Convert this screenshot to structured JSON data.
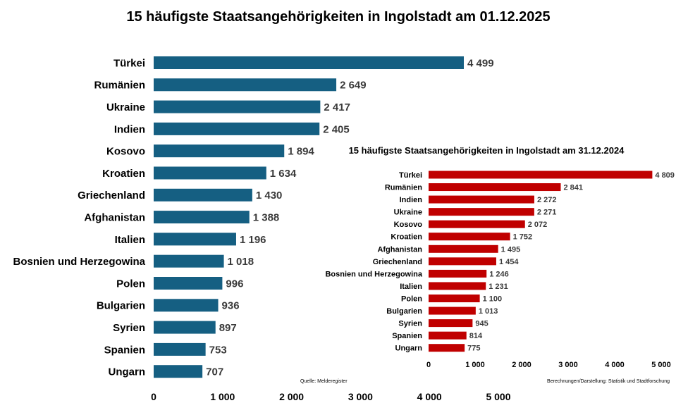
{
  "chart_data": [
    {
      "type": "bar",
      "orientation": "horizontal",
      "title": "15 häufigste Staatsangehörigkeiten in Ingolstadt am 01.12.2025",
      "categories": [
        "Türkei",
        "Rumänien",
        "Ukraine",
        "Indien",
        "Kosovo",
        "Kroatien",
        "Griechenland",
        "Afghanistan",
        "Italien",
        "Bosnien und Herzegowina",
        "Polen",
        "Bulgarien",
        "Syrien",
        "Spanien",
        "Ungarn"
      ],
      "values": [
        4499,
        2649,
        2417,
        2405,
        1894,
        1634,
        1430,
        1388,
        1196,
        1018,
        996,
        936,
        897,
        753,
        707
      ],
      "value_labels": [
        "4 499",
        "2 649",
        "2 417",
        "2 405",
        "1 894",
        "1 634",
        "1 430",
        "1 388",
        "1 196",
        "1 018",
        "996",
        "936",
        "897",
        "753",
        "707"
      ],
      "xlim": [
        0,
        5000
      ],
      "xticks": [
        0,
        1000,
        2000,
        3000,
        4000,
        5000
      ],
      "xtick_labels": [
        "0",
        "1 000",
        "2 000",
        "3 000",
        "4 000",
        "5 000"
      ],
      "color": "#155f82",
      "grid": false
    },
    {
      "type": "bar",
      "orientation": "horizontal",
      "title": "15 häufigste Staatsangehörigkeiten in Ingolstadt am 31.12.2024",
      "categories": [
        "Türkei",
        "Rumänien",
        "Indien",
        "Ukraine",
        "Kosovo",
        "Kroatien",
        "Afghanistan",
        "Griechenland",
        "Bosnien und Herzegowina",
        "Italien",
        "Polen",
        "Bulgarien",
        "Syrien",
        "Spanien",
        "Ungarn"
      ],
      "values": [
        4809,
        2841,
        2272,
        2271,
        2072,
        1752,
        1495,
        1454,
        1246,
        1231,
        1100,
        1013,
        945,
        814,
        775
      ],
      "value_labels": [
        "4 809",
        "2 841",
        "2 272",
        "2 271",
        "2 072",
        "1 752",
        "1 495",
        "1 454",
        "1 246",
        "1 231",
        "1 100",
        "1 013",
        "945",
        "814",
        "775"
      ],
      "xlim": [
        0,
        5000
      ],
      "xticks": [
        0,
        1000,
        2000,
        3000,
        4000,
        5000
      ],
      "xtick_labels": [
        "0",
        "1 000",
        "2 000",
        "3 000",
        "4 000",
        "5 000"
      ],
      "color": "#c00000",
      "grid": false
    }
  ],
  "footnotes": {
    "source": "Quelle: Melderegister",
    "credit": "Berechnungen/Darstellung: Statistik und Stadtforschung"
  }
}
